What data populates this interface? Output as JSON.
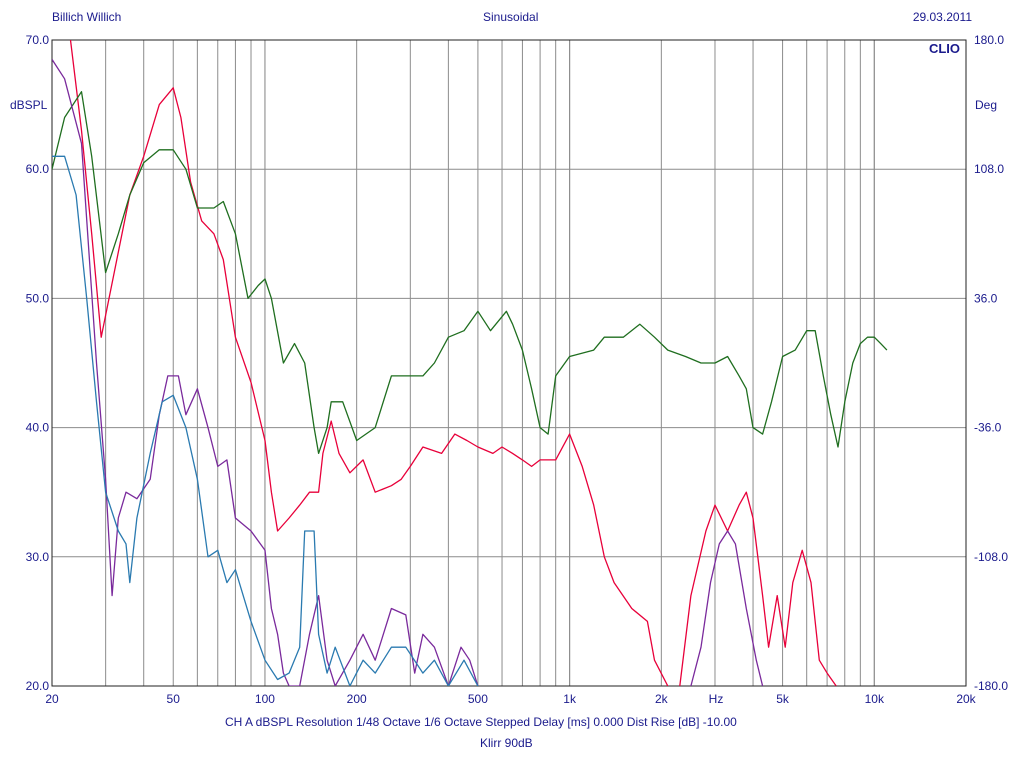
{
  "header": {
    "left": "Billich Willich",
    "center": "Sinusoidal",
    "right": "29.03.2011",
    "brand": "CLIO"
  },
  "footer": {
    "line1": "CH A   dBSPL   Resolution 1/48 Octave   1/6 Octave   Stepped   Delay [ms] 0.000   Dist Rise [dB] -10.00",
    "line2": "Klirr 90dB"
  },
  "colors": {
    "text": "#1a1a8c",
    "grid": "#8c8c8c",
    "response": "#e8003a",
    "phase": "#1f6e1f",
    "h2": "#7a2a9c",
    "h3": "#2a7ab0"
  },
  "chart_data": {
    "type": "line",
    "xscale": "log",
    "xlim": [
      20,
      20000
    ],
    "ylim": [
      20,
      70
    ],
    "y2lim": [
      -180,
      180
    ],
    "ylabel": "dBSPL",
    "y2label": "Deg",
    "xlabel": "Hz",
    "xticks": [
      {
        "v": 20,
        "label": "20"
      },
      {
        "v": 50,
        "label": "50"
      },
      {
        "v": 100,
        "label": "100"
      },
      {
        "v": 200,
        "label": "200"
      },
      {
        "v": 500,
        "label": "500"
      },
      {
        "v": 1000,
        "label": "1k"
      },
      {
        "v": 2000,
        "label": "2k"
      },
      {
        "v": 5000,
        "label": "5k"
      },
      {
        "v": 10000,
        "label": "10k"
      },
      {
        "v": 20000,
        "label": "20k"
      }
    ],
    "yticks": [
      "20.0",
      "30.0",
      "40.0",
      "50.0",
      "60.0",
      "70.0"
    ],
    "y2ticks": [
      "-180.0",
      "-108.0",
      "-36.0",
      "36.0",
      "108.0",
      "180.0"
    ],
    "grid": true,
    "series": [
      {
        "color": "#e8003a",
        "points": [
          [
            23,
            70
          ],
          [
            25,
            63
          ],
          [
            27,
            55
          ],
          [
            29,
            47
          ],
          [
            32,
            52
          ],
          [
            36,
            58
          ],
          [
            40,
            61
          ],
          [
            45,
            65
          ],
          [
            50,
            66.3
          ],
          [
            53,
            64
          ],
          [
            57,
            59
          ],
          [
            62,
            56
          ],
          [
            68,
            55
          ],
          [
            73,
            53
          ],
          [
            80,
            47
          ],
          [
            90,
            43.5
          ],
          [
            100,
            39
          ],
          [
            105,
            35
          ],
          [
            110,
            32
          ],
          [
            120,
            33
          ],
          [
            130,
            34
          ],
          [
            140,
            35
          ],
          [
            150,
            35
          ],
          [
            155,
            38
          ],
          [
            165,
            40.5
          ],
          [
            175,
            38
          ],
          [
            190,
            36.5
          ],
          [
            210,
            37.5
          ],
          [
            230,
            35
          ],
          [
            260,
            35.5
          ],
          [
            280,
            36
          ],
          [
            300,
            37
          ],
          [
            330,
            38.5
          ],
          [
            380,
            38
          ],
          [
            420,
            39.5
          ],
          [
            460,
            39
          ],
          [
            500,
            38.5
          ],
          [
            560,
            38
          ],
          [
            600,
            38.5
          ],
          [
            650,
            38
          ],
          [
            700,
            37.5
          ],
          [
            750,
            37
          ],
          [
            800,
            37.5
          ],
          [
            900,
            37.5
          ],
          [
            1000,
            39.5
          ],
          [
            1100,
            37
          ],
          [
            1200,
            34
          ],
          [
            1300,
            30
          ],
          [
            1400,
            28
          ],
          [
            1600,
            26
          ],
          [
            1800,
            25
          ],
          [
            1900,
            22
          ],
          [
            2100,
            20
          ]
        ]
      },
      {
        "color": "#e8003a",
        "points": [
          [
            2300,
            20
          ],
          [
            2500,
            27
          ],
          [
            2800,
            32
          ],
          [
            3000,
            34
          ],
          [
            3300,
            32
          ],
          [
            3600,
            34
          ],
          [
            3800,
            35
          ],
          [
            4000,
            33
          ],
          [
            4300,
            27
          ],
          [
            4500,
            23
          ],
          [
            4800,
            27
          ],
          [
            5100,
            23
          ],
          [
            5400,
            28
          ],
          [
            5800,
            30.5
          ],
          [
            6200,
            28
          ],
          [
            6600,
            22
          ],
          [
            7000,
            21
          ],
          [
            7500,
            20
          ]
        ]
      },
      {
        "color": "#1f6e1f",
        "points": [
          [
            20,
            60
          ],
          [
            22,
            64
          ],
          [
            25,
            66
          ],
          [
            27,
            61
          ],
          [
            30,
            52
          ],
          [
            33,
            55
          ],
          [
            36,
            58
          ],
          [
            40,
            60.5
          ],
          [
            45,
            61.5
          ],
          [
            50,
            61.5
          ],
          [
            55,
            60
          ],
          [
            60,
            57
          ],
          [
            68,
            57
          ],
          [
            73,
            57.5
          ],
          [
            80,
            55
          ],
          [
            88,
            50
          ],
          [
            95,
            51
          ],
          [
            100,
            51.5
          ],
          [
            105,
            50
          ],
          [
            115,
            45
          ],
          [
            125,
            46.5
          ],
          [
            135,
            45
          ],
          [
            145,
            40
          ],
          [
            150,
            38
          ],
          [
            160,
            40
          ],
          [
            165,
            42
          ],
          [
            180,
            42
          ],
          [
            200,
            39
          ],
          [
            230,
            40
          ],
          [
            260,
            44
          ],
          [
            300,
            44
          ],
          [
            330,
            44
          ],
          [
            360,
            45
          ],
          [
            400,
            47
          ],
          [
            450,
            47.5
          ],
          [
            500,
            49
          ],
          [
            550,
            47.5
          ],
          [
            620,
            49
          ],
          [
            650,
            48
          ],
          [
            700,
            46
          ],
          [
            750,
            43
          ],
          [
            800,
            40
          ],
          [
            850,
            39.5
          ],
          [
            900,
            44
          ],
          [
            1000,
            45.5
          ],
          [
            1200,
            46
          ],
          [
            1300,
            47
          ],
          [
            1500,
            47
          ],
          [
            1700,
            48
          ],
          [
            1900,
            47
          ],
          [
            2100,
            46
          ],
          [
            2400,
            45.5
          ],
          [
            2700,
            45
          ],
          [
            3000,
            45
          ],
          [
            3300,
            45.5
          ],
          [
            3600,
            44
          ],
          [
            3800,
            43
          ],
          [
            4000,
            40
          ],
          [
            4300,
            39.5
          ],
          [
            4600,
            42
          ],
          [
            5000,
            45.5
          ],
          [
            5500,
            46
          ],
          [
            6000,
            47.5
          ],
          [
            6400,
            47.5
          ],
          [
            6800,
            44
          ],
          [
            7200,
            41
          ],
          [
            7600,
            38.5
          ],
          [
            8000,
            42
          ],
          [
            8500,
            45
          ],
          [
            9000,
            46.5
          ],
          [
            9500,
            47
          ],
          [
            10000,
            47
          ],
          [
            10500,
            46.5
          ],
          [
            11000,
            46
          ]
        ]
      },
      {
        "color": "#7a2a9c",
        "points": [
          [
            20,
            68.5
          ],
          [
            22,
            67
          ],
          [
            25,
            62
          ],
          [
            28,
            45
          ],
          [
            30,
            36
          ],
          [
            31.5,
            27
          ],
          [
            33,
            33
          ],
          [
            35,
            35
          ],
          [
            38,
            34.5
          ],
          [
            42,
            36
          ],
          [
            45,
            41
          ],
          [
            48,
            44
          ],
          [
            52,
            44
          ],
          [
            55,
            41
          ],
          [
            60,
            43
          ],
          [
            65,
            40
          ],
          [
            70,
            37
          ],
          [
            75,
            37.5
          ],
          [
            80,
            33
          ],
          [
            90,
            32
          ],
          [
            100,
            30.5
          ],
          [
            105,
            26
          ],
          [
            110,
            24
          ],
          [
            115,
            21
          ],
          [
            120,
            20
          ],
          [
            130,
            20
          ],
          [
            140,
            24
          ],
          [
            150,
            27
          ],
          [
            160,
            22
          ],
          [
            170,
            20
          ],
          [
            190,
            22
          ],
          [
            210,
            24
          ],
          [
            230,
            22
          ],
          [
            260,
            26
          ],
          [
            290,
            25.5
          ],
          [
            310,
            21
          ],
          [
            330,
            24
          ],
          [
            360,
            23
          ],
          [
            400,
            20
          ],
          [
            440,
            23
          ],
          [
            470,
            22
          ],
          [
            500,
            20
          ]
        ]
      },
      {
        "color": "#7a2a9c",
        "points": [
          [
            2500,
            20
          ],
          [
            2700,
            23
          ],
          [
            2900,
            28
          ],
          [
            3100,
            31
          ],
          [
            3300,
            32
          ],
          [
            3500,
            31
          ],
          [
            3800,
            26
          ],
          [
            4100,
            22
          ],
          [
            4300,
            20
          ]
        ]
      },
      {
        "color": "#2a7ab0",
        "points": [
          [
            20,
            61
          ],
          [
            22,
            61
          ],
          [
            24,
            58
          ],
          [
            26,
            50
          ],
          [
            28,
            42
          ],
          [
            30,
            35
          ],
          [
            33,
            32
          ],
          [
            35,
            31
          ],
          [
            36,
            28
          ],
          [
            38,
            33
          ],
          [
            42,
            38
          ],
          [
            46,
            42
          ],
          [
            50,
            42.5
          ],
          [
            55,
            40
          ],
          [
            60,
            36
          ],
          [
            65,
            30
          ],
          [
            70,
            30.5
          ],
          [
            75,
            28
          ],
          [
            80,
            29
          ],
          [
            90,
            25
          ],
          [
            100,
            22
          ],
          [
            110,
            20.5
          ],
          [
            120,
            21
          ],
          [
            130,
            23
          ],
          [
            135,
            32
          ],
          [
            145,
            32
          ],
          [
            150,
            24
          ],
          [
            160,
            21
          ],
          [
            170,
            23
          ],
          [
            190,
            20
          ],
          [
            210,
            22
          ],
          [
            230,
            21
          ],
          [
            260,
            23
          ],
          [
            290,
            23
          ],
          [
            330,
            21
          ],
          [
            360,
            22
          ],
          [
            400,
            20
          ],
          [
            450,
            22
          ],
          [
            500,
            20
          ]
        ]
      }
    ]
  }
}
